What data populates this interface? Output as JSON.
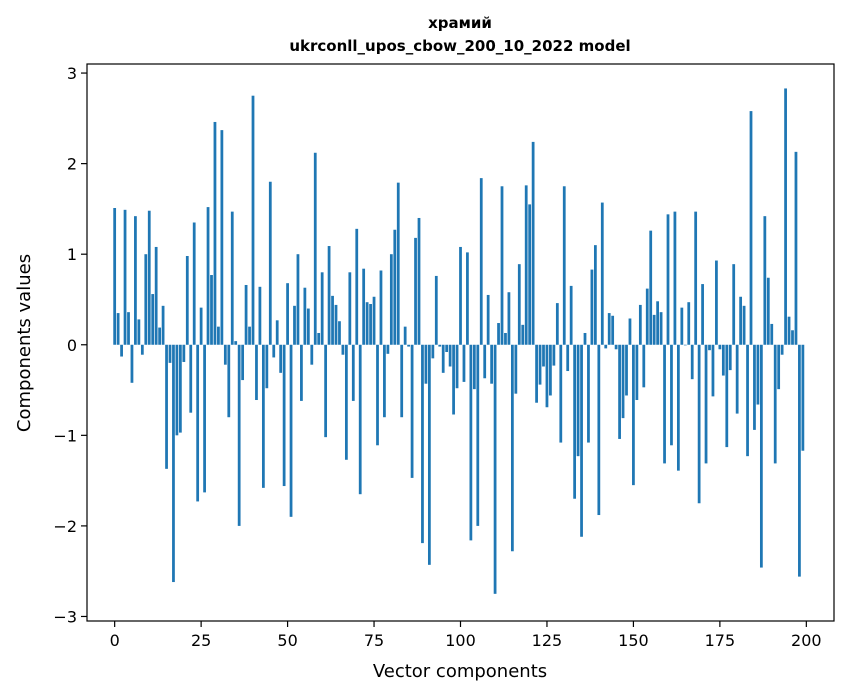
{
  "chart_data": {
    "type": "bar",
    "title": "храмий",
    "subtitle": "ukrconll_upos_cbow_200_10_2022 model",
    "xlabel": "Vector components",
    "ylabel": "Components values",
    "xlim": [
      -8,
      208
    ],
    "ylim": [
      -3.05,
      3.1
    ],
    "xticks": [
      0,
      25,
      50,
      75,
      100,
      125,
      150,
      175,
      200
    ],
    "xtick_labels": [
      "0",
      "25",
      "50",
      "75",
      "100",
      "125",
      "150",
      "175",
      "200"
    ],
    "yticks": [
      -3,
      -2,
      -1,
      0,
      1,
      2,
      3
    ],
    "ytick_labels": [
      "−3",
      "−2",
      "−1",
      "0",
      "1",
      "2",
      "3"
    ],
    "grid": false,
    "bar_color": "#1f77b4",
    "x": [
      0,
      1,
      2,
      3,
      4,
      5,
      6,
      7,
      8,
      9,
      10,
      11,
      12,
      13,
      14,
      15,
      16,
      17,
      18,
      19,
      20,
      21,
      22,
      23,
      24,
      25,
      26,
      27,
      28,
      29,
      30,
      31,
      32,
      33,
      34,
      35,
      36,
      37,
      38,
      39,
      40,
      41,
      42,
      43,
      44,
      45,
      46,
      47,
      48,
      49,
      50,
      51,
      52,
      53,
      54,
      55,
      56,
      57,
      58,
      59,
      60,
      61,
      62,
      63,
      64,
      65,
      66,
      67,
      68,
      69,
      70,
      71,
      72,
      73,
      74,
      75,
      76,
      77,
      78,
      79,
      80,
      81,
      82,
      83,
      84,
      85,
      86,
      87,
      88,
      89,
      90,
      91,
      92,
      93,
      94,
      95,
      96,
      97,
      98,
      99,
      100,
      101,
      102,
      103,
      104,
      105,
      106,
      107,
      108,
      109,
      110,
      111,
      112,
      113,
      114,
      115,
      116,
      117,
      118,
      119,
      120,
      121,
      122,
      123,
      124,
      125,
      126,
      127,
      128,
      129,
      130,
      131,
      132,
      133,
      134,
      135,
      136,
      137,
      138,
      139,
      140,
      141,
      142,
      143,
      144,
      145,
      146,
      147,
      148,
      149,
      150,
      151,
      152,
      153,
      154,
      155,
      156,
      157,
      158,
      159,
      160,
      161,
      162,
      163,
      164,
      165,
      166,
      167,
      168,
      169,
      170,
      171,
      172,
      173,
      174,
      175,
      176,
      177,
      178,
      179,
      180,
      181,
      182,
      183,
      184,
      185,
      186,
      187,
      188,
      189,
      190,
      191,
      192,
      193,
      194,
      195,
      196,
      197,
      198,
      199
    ],
    "values": [
      1.51,
      0.35,
      -0.13,
      1.49,
      0.36,
      -0.42,
      1.42,
      0.28,
      -0.11,
      1.0,
      1.48,
      0.56,
      1.08,
      0.19,
      0.43,
      -1.37,
      -0.2,
      -2.62,
      -1.0,
      -0.97,
      -0.19,
      0.98,
      -0.75,
      1.35,
      -1.73,
      0.41,
      -1.63,
      1.52,
      0.77,
      2.46,
      0.2,
      2.37,
      -0.22,
      -0.8,
      1.47,
      0.04,
      -2.0,
      -0.39,
      0.66,
      0.2,
      2.75,
      -0.61,
      0.64,
      -1.58,
      -0.48,
      1.8,
      -0.14,
      0.27,
      -0.31,
      -1.56,
      0.68,
      -1.9,
      0.43,
      1.0,
      -0.62,
      0.63,
      0.4,
      -0.22,
      2.12,
      0.13,
      0.8,
      -1.02,
      1.09,
      0.54,
      0.44,
      0.26,
      -0.11,
      -1.27,
      0.8,
      -0.62,
      1.28,
      -1.65,
      0.84,
      0.47,
      0.45,
      0.53,
      -1.11,
      0.82,
      -0.8,
      -0.1,
      1.0,
      1.27,
      1.79,
      -0.8,
      0.2,
      -0.02,
      -1.47,
      1.18,
      1.4,
      -2.19,
      -0.43,
      -2.43,
      -0.15,
      0.76,
      -0.02,
      -0.31,
      -0.08,
      -0.24,
      -0.77,
      -0.48,
      1.08,
      -0.41,
      1.02,
      -2.16,
      -0.49,
      -2.0,
      1.84,
      -0.37,
      0.55,
      -0.43,
      -2.75,
      0.24,
      1.75,
      0.13,
      0.58,
      -2.28,
      -0.54,
      0.89,
      0.22,
      1.76,
      1.55,
      2.24,
      -0.64,
      -0.44,
      -0.24,
      -0.69,
      -0.56,
      -0.23,
      0.46,
      -1.08,
      1.75,
      -0.29,
      0.65,
      -1.7,
      -1.23,
      -2.12,
      0.13,
      -1.08,
      0.83,
      1.1,
      -1.88,
      1.57,
      -0.04,
      0.35,
      0.32,
      -0.05,
      -1.04,
      -0.81,
      -0.56,
      0.29,
      -1.55,
      -0.61,
      0.44,
      -0.47,
      0.62,
      1.26,
      0.33,
      0.48,
      0.36,
      -1.31,
      1.44,
      -1.11,
      1.47,
      -1.39,
      0.41,
      0.0,
      0.47,
      -0.38,
      1.47,
      -1.75,
      0.67,
      -1.31,
      -0.06,
      -0.57,
      0.93,
      -0.05,
      -0.34,
      -1.13,
      -0.28,
      0.89,
      -0.76,
      0.53,
      0.43,
      -1.23,
      2.58,
      -0.94,
      -0.66,
      -2.46,
      1.42,
      0.74,
      0.23,
      -1.31,
      -0.49,
      -0.11,
      2.83,
      0.31,
      0.16,
      2.13,
      -2.56,
      -1.17
    ]
  }
}
